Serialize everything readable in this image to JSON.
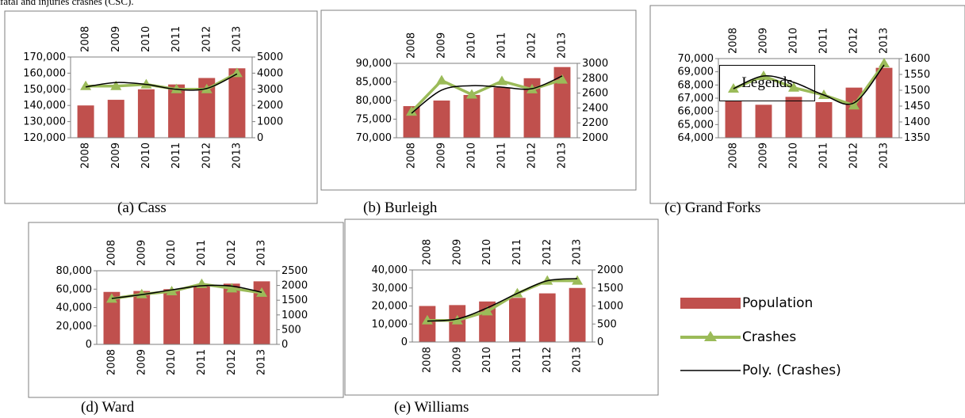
{
  "top_text": "fatal and injuries crashes (CSC).",
  "legend": {
    "title": "Legends",
    "items": [
      "Population",
      "Crashes",
      "Poly. (Crashes)"
    ]
  },
  "colors": {
    "population_bar": "#c0504d",
    "crashes_line": "#9bbb59",
    "poly_line": "#000000",
    "frame": "#7f7f7f"
  },
  "chart_data": [
    {
      "type": "bar",
      "caption": "(a) Cass",
      "categories": [
        "2008",
        "2009",
        "2010",
        "2011",
        "2012",
        "2013"
      ],
      "series": [
        {
          "name": "Population",
          "axis": "left",
          "values": [
            140000,
            143500,
            150000,
            153000,
            157000,
            163000
          ]
        },
        {
          "name": "Crashes",
          "axis": "right",
          "values": [
            3200,
            3200,
            3300,
            3000,
            3000,
            4000
          ]
        },
        {
          "name": "Poly. (Crashes)",
          "axis": "right",
          "values": [
            3150,
            3420,
            3300,
            3000,
            3050,
            3950
          ]
        }
      ],
      "ylim_left": [
        120000,
        170000
      ],
      "yticks_left": [
        "120,000",
        "130,000",
        "140,000",
        "150,000",
        "160,000",
        "170,000"
      ],
      "ylim_right": [
        0,
        5000
      ],
      "yticks_right": [
        "0",
        "1000",
        "2000",
        "3000",
        "4000",
        "5000"
      ]
    },
    {
      "type": "bar",
      "caption": "(b) Burleigh",
      "categories": [
        "2008",
        "2009",
        "2010",
        "2011",
        "2012",
        "2013"
      ],
      "series": [
        {
          "name": "Population",
          "axis": "left",
          "values": [
            78500,
            80000,
            81500,
            83500,
            86000,
            89000
          ]
        },
        {
          "name": "Crashes",
          "axis": "right",
          "values": [
            2350,
            2770,
            2580,
            2760,
            2650,
            2780
          ]
        },
        {
          "name": "Poly. (Crashes)",
          "axis": "right",
          "values": [
            2330,
            2640,
            2700,
            2680,
            2660,
            2830
          ]
        }
      ],
      "ylim_left": [
        70000,
        90000
      ],
      "yticks_left": [
        "70,000",
        "75,000",
        "80,000",
        "85,000",
        "90,000"
      ],
      "ylim_right": [
        2000,
        3000
      ],
      "yticks_right": [
        "2000",
        "2200",
        "2400",
        "2600",
        "2800",
        "3000"
      ]
    },
    {
      "type": "bar",
      "caption": "(c) Grand Forks",
      "categories": [
        "2008",
        "2009",
        "2010",
        "2011",
        "2012",
        "2013"
      ],
      "series": [
        {
          "name": "Population",
          "axis": "left",
          "values": [
            66800,
            66500,
            67100,
            66700,
            67800,
            69300
          ]
        },
        {
          "name": "Crashes",
          "axis": "right",
          "values": [
            1505,
            1545,
            1508,
            1485,
            1452,
            1585
          ]
        },
        {
          "name": "Poly. (Crashes)",
          "axis": "right",
          "values": [
            1505,
            1545,
            1525,
            1485,
            1460,
            1580
          ]
        }
      ],
      "ylim_left": [
        64000,
        70000
      ],
      "yticks_left": [
        "64,000",
        "65,000",
        "66,000",
        "67,000",
        "68,000",
        "69,000",
        "70,000"
      ],
      "ylim_right": [
        1350,
        1600
      ],
      "yticks_right": [
        "1350",
        "1400",
        "1450",
        "1500",
        "1550",
        "1600"
      ]
    },
    {
      "type": "bar",
      "caption": "(d) Ward",
      "categories": [
        "2008",
        "2009",
        "2010",
        "2011",
        "2012",
        "2013"
      ],
      "series": [
        {
          "name": "Population",
          "axis": "left",
          "values": [
            57000,
            58000,
            60000,
            64000,
            66000,
            68500
          ]
        },
        {
          "name": "Crashes",
          "axis": "right",
          "values": [
            1550,
            1700,
            1800,
            2050,
            1900,
            1750
          ]
        },
        {
          "name": "Poly. (Crashes)",
          "axis": "right",
          "values": [
            1560,
            1690,
            1850,
            1990,
            1980,
            1770
          ]
        }
      ],
      "ylim_left": [
        0,
        80000
      ],
      "yticks_left": [
        "0",
        "20,000",
        "40,000",
        "60,000",
        "80,000"
      ],
      "ylim_right": [
        0,
        2500
      ],
      "yticks_right": [
        "0",
        "500",
        "1000",
        "1500",
        "2000",
        "2500"
      ]
    },
    {
      "type": "bar",
      "caption": "(e) Williams",
      "categories": [
        "2008",
        "2009",
        "2010",
        "2011",
        "2012",
        "2013"
      ],
      "series": [
        {
          "name": "Population",
          "axis": "left",
          "values": [
            20000,
            20500,
            22500,
            24500,
            27000,
            30000
          ]
        },
        {
          "name": "Crashes",
          "axis": "right",
          "values": [
            600,
            600,
            850,
            1350,
            1700,
            1700
          ]
        },
        {
          "name": "Poly. (Crashes)",
          "axis": "right",
          "values": [
            580,
            640,
            950,
            1350,
            1700,
            1760
          ]
        }
      ],
      "ylim_left": [
        0,
        40000
      ],
      "yticks_left": [
        "0",
        "10,000",
        "20,000",
        "30,000",
        "40,000"
      ],
      "ylim_right": [
        0,
        2000
      ],
      "yticks_right": [
        "0",
        "500",
        "1000",
        "1500",
        "2000"
      ]
    }
  ]
}
